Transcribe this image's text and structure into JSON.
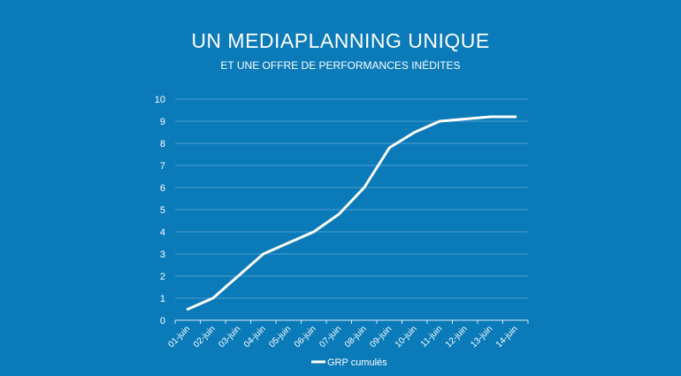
{
  "colors": {
    "background": "#0a7ab8",
    "line": "#ffffff",
    "grid": "#4e9fcf"
  },
  "chart_data": {
    "type": "line",
    "title": "UN MEDIAPLANNING UNIQUE",
    "subtitle": "ET UNE OFFRE DE PERFORMANCES INÉDITES",
    "categories": [
      "01-juin",
      "02-juin",
      "03-juin",
      "04-juin",
      "05-juin",
      "06-juin",
      "07-juin",
      "08-juin",
      "09-juin",
      "10-juin",
      "11-juin",
      "12-juin",
      "13-juin",
      "14-juin"
    ],
    "series": [
      {
        "name": "GRP cumulés",
        "values": [
          0.5,
          1.0,
          2.0,
          3.0,
          3.5,
          4.0,
          4.8,
          6.0,
          7.8,
          8.5,
          9.0,
          9.1,
          9.2,
          9.2
        ]
      }
    ],
    "yticks": [
      "0",
      "1",
      "2",
      "3",
      "4",
      "5",
      "6",
      "7",
      "8",
      "9",
      "10"
    ],
    "ylim": [
      0,
      10
    ],
    "grid": true,
    "legend_position": "bottom"
  }
}
